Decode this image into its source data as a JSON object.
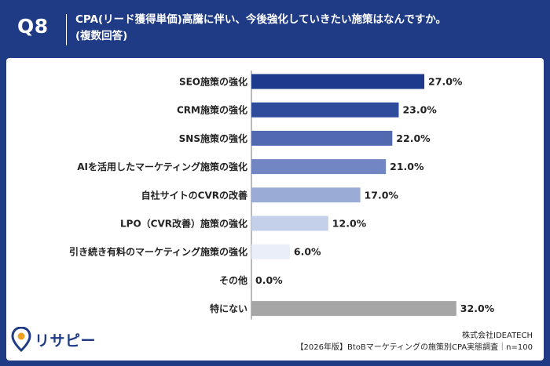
{
  "header": {
    "question_no": "Q8",
    "title_line1": "CPA(リード獲得単価)高騰に伴い、今後強化していきたい施策はなんですか。",
    "title_line2": "(複数回答)"
  },
  "chart_data": {
    "type": "bar",
    "orientation": "horizontal",
    "categories": [
      "SEO施策の強化",
      "CRM施策の強化",
      "SNS施策の強化",
      "AIを活用したマーケティング施策の強化",
      "自社サイトのCVRの改善",
      "LPO（CVR改善）施策の強化",
      "引き続き有料のマーケティング施策の強化",
      "その他",
      "特にない"
    ],
    "values": [
      27.0,
      23.0,
      22.0,
      21.0,
      17.0,
      12.0,
      6.0,
      0.0,
      32.0
    ],
    "value_labels": [
      "27.0%",
      "23.0%",
      "22.0%",
      "21.0%",
      "17.0%",
      "12.0%",
      "6.0%",
      "0.0%",
      "32.0%"
    ],
    "bar_colors": [
      "#1e3a8c",
      "#2f4c9c",
      "#5069b0",
      "#7186c2",
      "#9aabd6",
      "#c4cfea",
      "#e9eef8",
      "#e9eef8",
      "#a6a6a6"
    ],
    "xlim": [
      0,
      100
    ],
    "grid": false,
    "legend": "none"
  },
  "footer": {
    "company": "株式会社IDEATECH",
    "survey": "【2026年版】BtoBマーケティングの施策別CPA実態調査｜n=100"
  },
  "logo": {
    "text": "リサピー",
    "icon": "location-pin-icon",
    "color": "#1f3b85"
  }
}
